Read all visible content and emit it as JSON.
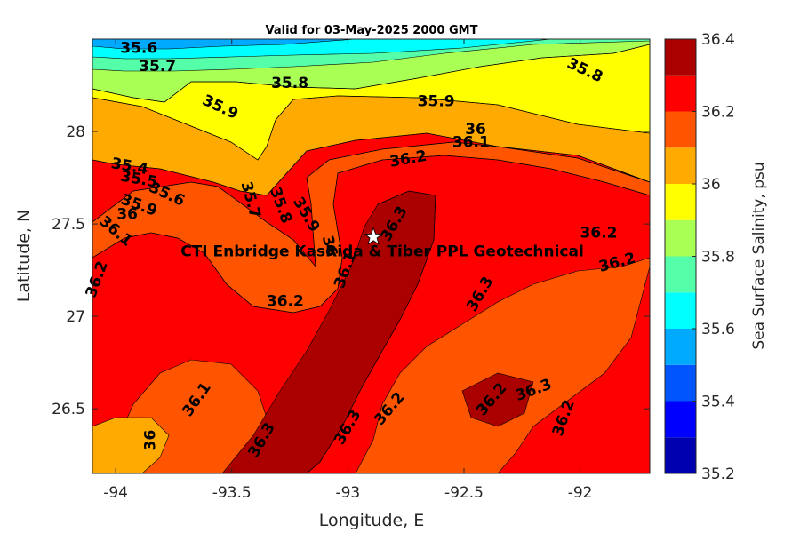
{
  "chart_data": {
    "type": "heatmap",
    "title": "Valid for 03-May-2025 2000 GMT",
    "xlabel": "Longitude, E",
    "ylabel": "Latitude, N",
    "xlim": [
      -94.1,
      -91.7
    ],
    "ylim": [
      26.15,
      28.5
    ],
    "xticks": [
      -94,
      -93.5,
      -93,
      -92.5,
      -92
    ],
    "yticks": [
      26.5,
      27,
      27.5,
      28
    ],
    "colorbar": {
      "label": "Sea Surface Salinity, psu",
      "range": [
        35.2,
        36.4
      ],
      "step": 0.1,
      "ticks": [
        35.2,
        35.4,
        35.6,
        35.8,
        36,
        36.2,
        36.4
      ],
      "colors": [
        "#0000b0",
        "#0000ff",
        "#0055ff",
        "#00aaff",
        "#00ffff",
        "#55ffaa",
        "#aaff55",
        "#ffff00",
        "#ffaa00",
        "#ff5500",
        "#ff0000",
        "#aa0000"
      ]
    },
    "field": {
      "bands_low_to_high": [
        35.2,
        35.3,
        35.4,
        35.5,
        35.6,
        35.7,
        35.8,
        35.9,
        36.0,
        36.1,
        36.2,
        36.3
      ]
    },
    "contour_labels": [
      {
        "text": "35.6",
        "lon": -93.9,
        "lat": 28.45,
        "angle": 0
      },
      {
        "text": "35.7",
        "lon": -93.82,
        "lat": 28.35,
        "angle": 0
      },
      {
        "text": "35.8",
        "lon": -93.25,
        "lat": 28.26,
        "angle": 0
      },
      {
        "text": "35.9",
        "lon": -93.55,
        "lat": 28.13,
        "angle": 25
      },
      {
        "text": "35.9",
        "lon": -92.62,
        "lat": 28.16,
        "angle": 0
      },
      {
        "text": "35.8",
        "lon": -91.98,
        "lat": 28.33,
        "angle": 25
      },
      {
        "text": "36",
        "lon": -92.45,
        "lat": 28.01,
        "angle": 0
      },
      {
        "text": "36.1",
        "lon": -92.47,
        "lat": 27.94,
        "angle": 0
      },
      {
        "text": "36.2",
        "lon": -92.74,
        "lat": 27.85,
        "angle": -10
      },
      {
        "text": "35.4",
        "lon": -93.94,
        "lat": 27.81,
        "angle": 10
      },
      {
        "text": "35.5",
        "lon": -93.9,
        "lat": 27.74,
        "angle": 10
      },
      {
        "text": "35.6",
        "lon": -93.78,
        "lat": 27.66,
        "angle": 25
      },
      {
        "text": "35.9",
        "lon": -93.9,
        "lat": 27.6,
        "angle": 20
      },
      {
        "text": "36",
        "lon": -93.95,
        "lat": 27.55,
        "angle": 0
      },
      {
        "text": "35.7",
        "lon": -93.42,
        "lat": 27.63,
        "angle": 75
      },
      {
        "text": "35.8",
        "lon": -93.29,
        "lat": 27.6,
        "angle": 70
      },
      {
        "text": "35.9",
        "lon": -93.18,
        "lat": 27.55,
        "angle": 60
      },
      {
        "text": "36",
        "lon": -93.08,
        "lat": 27.38,
        "angle": 75
      },
      {
        "text": "36.1",
        "lon": -93.01,
        "lat": 27.25,
        "angle": -70
      },
      {
        "text": "36.3",
        "lon": -92.8,
        "lat": 27.5,
        "angle": -60
      },
      {
        "text": "36.1",
        "lon": -94.0,
        "lat": 27.46,
        "angle": 40
      },
      {
        "text": "36.2",
        "lon": -94.08,
        "lat": 27.2,
        "angle": -70
      },
      {
        "text": "36.2",
        "lon": -93.27,
        "lat": 27.08,
        "angle": 0
      },
      {
        "text": "36.3",
        "lon": -92.43,
        "lat": 27.12,
        "angle": -60
      },
      {
        "text": "36.2",
        "lon": -91.92,
        "lat": 27.45,
        "angle": 0
      },
      {
        "text": "36.2",
        "lon": -91.84,
        "lat": 27.29,
        "angle": -15
      },
      {
        "text": "36.1",
        "lon": -93.65,
        "lat": 26.55,
        "angle": -55
      },
      {
        "text": "36",
        "lon": -93.85,
        "lat": 26.33,
        "angle": -90
      },
      {
        "text": "36.3",
        "lon": -93.37,
        "lat": 26.33,
        "angle": -60
      },
      {
        "text": "36.3",
        "lon": -93.0,
        "lat": 26.4,
        "angle": -60
      },
      {
        "text": "36.2",
        "lon": -92.82,
        "lat": 26.5,
        "angle": -50
      },
      {
        "text": "36.2",
        "lon": -92.38,
        "lat": 26.55,
        "angle": -50
      },
      {
        "text": "36.3",
        "lon": -92.2,
        "lat": 26.6,
        "angle": -20
      },
      {
        "text": "36.2",
        "lon": -92.07,
        "lat": 26.45,
        "angle": -70
      }
    ],
    "site": {
      "label": "CTI Enbridge  KasRida & Tiber PPL Geotechnical",
      "lon": -92.89,
      "lat": 27.43,
      "marker": "white-star"
    }
  }
}
